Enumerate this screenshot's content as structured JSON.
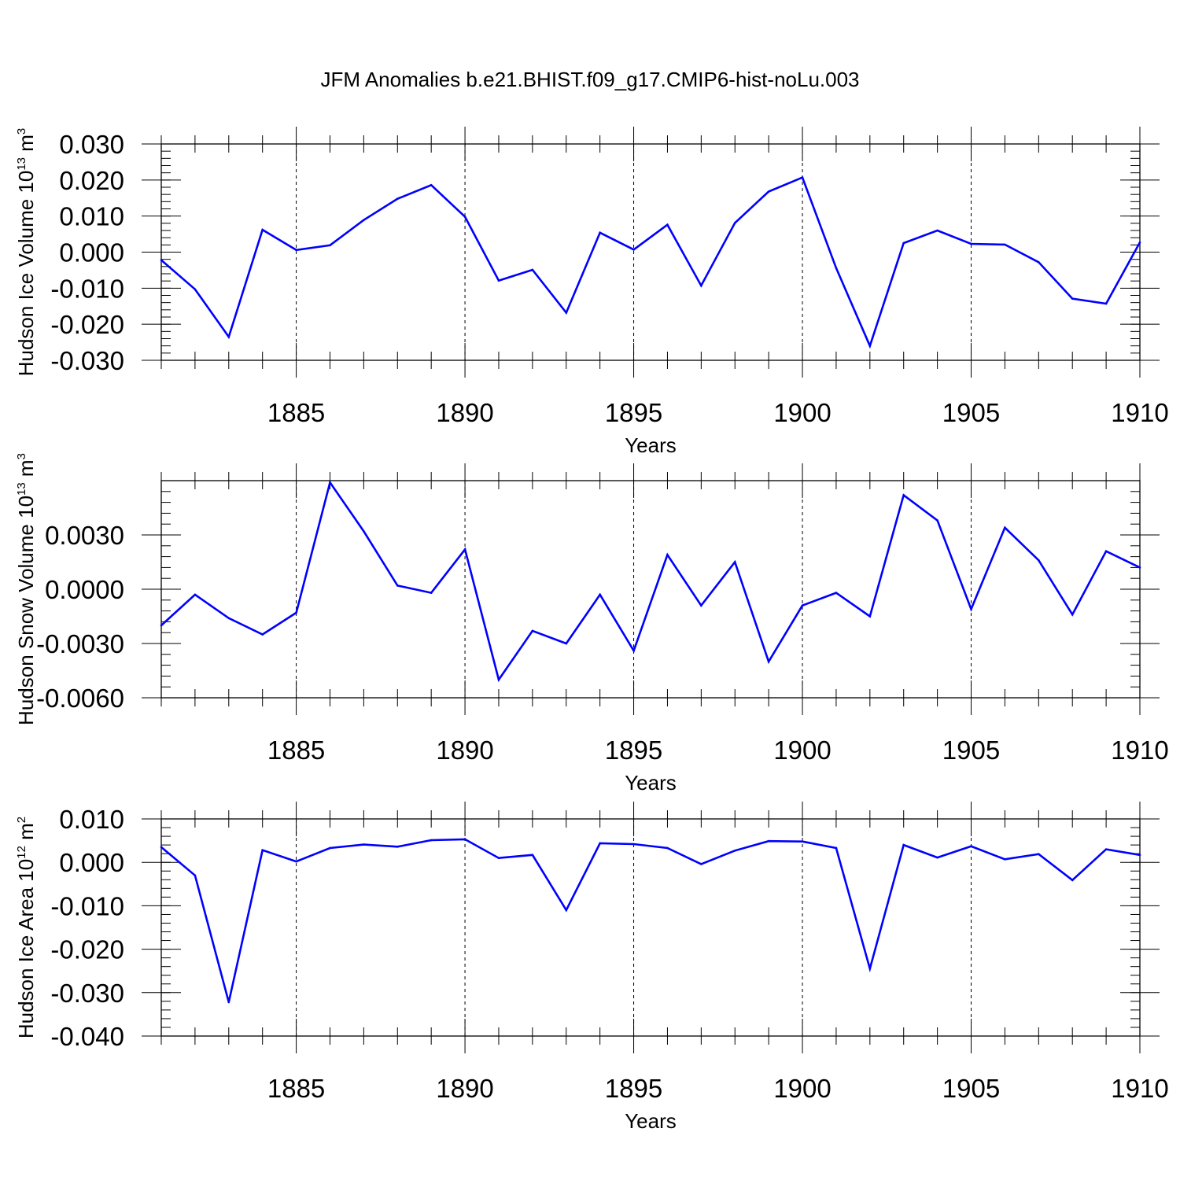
{
  "figure": {
    "title": "JFM Anomalies b.e21.BHIST.f09_g17.CMIP6-hist-noLu.003"
  },
  "chart_data": [
    {
      "type": "line",
      "panel": "top",
      "title": "",
      "xlabel": "Years",
      "ylabel": "Hudson Ice Volume 10",
      "ylabel_exponent": "13",
      "ylabel_unit": "m",
      "ylabel_unit_exponent": "3",
      "xlim": [
        1881,
        1910
      ],
      "ylim": [
        -0.03,
        0.03
      ],
      "xticks": [
        1885,
        1890,
        1895,
        1900,
        1905,
        1910
      ],
      "yticks": [
        0.03,
        0.02,
        0.01,
        0.0,
        -0.01,
        -0.02,
        -0.03
      ],
      "ytick_labels": [
        "0.030",
        "0.020",
        "0.010",
        "0.000",
        "-0.010",
        "-0.020",
        "-0.030"
      ],
      "grid": "vertical dashed at major x ticks",
      "line_color": "#0000ff",
      "x": [
        1881,
        1882,
        1883,
        1884,
        1885,
        1886,
        1887,
        1888,
        1889,
        1890,
        1891,
        1892,
        1893,
        1894,
        1895,
        1896,
        1897,
        1898,
        1899,
        1900,
        1901,
        1902,
        1903,
        1904,
        1905,
        1906,
        1907,
        1908,
        1909,
        1910
      ],
      "values": [
        -0.0022,
        -0.0103,
        -0.0235,
        0.0062,
        0.0006,
        0.0019,
        0.0089,
        0.0148,
        0.0186,
        0.0098,
        -0.0079,
        -0.0049,
        -0.0168,
        0.0054,
        0.0007,
        0.0076,
        -0.0093,
        0.0081,
        0.0168,
        0.0207,
        -0.0044,
        -0.026,
        0.0025,
        0.006,
        0.0023,
        0.0021,
        -0.0028,
        -0.0129,
        -0.0143,
        0.0027
      ]
    },
    {
      "type": "line",
      "panel": "middle",
      "title": "",
      "xlabel": "Years",
      "ylabel": "Hudson Snow Volume 10",
      "ylabel_exponent": "13",
      "ylabel_unit": "m",
      "ylabel_unit_exponent": "3",
      "xlim": [
        1881,
        1910
      ],
      "ylim": [
        -0.006,
        0.006
      ],
      "xticks": [
        1885,
        1890,
        1895,
        1900,
        1905,
        1910
      ],
      "yticks": [
        0.003,
        0.0,
        -0.003,
        -0.006
      ],
      "ytick_labels": [
        "0.0030",
        "0.0000",
        "-0.0030",
        "-0.0060"
      ],
      "grid": "vertical dashed at major x ticks",
      "line_color": "#0000ff",
      "x": [
        1881,
        1882,
        1883,
        1884,
        1885,
        1886,
        1887,
        1888,
        1889,
        1890,
        1891,
        1892,
        1893,
        1894,
        1895,
        1896,
        1897,
        1898,
        1899,
        1900,
        1901,
        1902,
        1903,
        1904,
        1905,
        1906,
        1907,
        1908,
        1909,
        1910
      ],
      "values": [
        -0.002,
        -0.0003,
        -0.0016,
        -0.0025,
        -0.0013,
        0.0059,
        0.0032,
        0.0002,
        -0.0002,
        0.0022,
        -0.005,
        -0.0023,
        -0.003,
        -0.0003,
        -0.0034,
        0.0019,
        -0.0009,
        0.0015,
        -0.004,
        -0.0009,
        -0.0002,
        -0.0015,
        0.0052,
        0.0038,
        -0.0011,
        0.0034,
        0.0016,
        -0.0014,
        0.0021,
        0.0012
      ]
    },
    {
      "type": "line",
      "panel": "bottom",
      "title": "",
      "xlabel": "Years",
      "ylabel": "Hudson Ice Area 10",
      "ylabel_exponent": "12",
      "ylabel_unit": "m",
      "ylabel_unit_exponent": "2",
      "xlim": [
        1881,
        1910
      ],
      "ylim": [
        -0.04,
        0.01
      ],
      "xticks": [
        1885,
        1890,
        1895,
        1900,
        1905,
        1910
      ],
      "yticks": [
        0.01,
        0.0,
        -0.01,
        -0.02,
        -0.03,
        -0.04
      ],
      "ytick_labels": [
        "0.010",
        "0.000",
        "-0.010",
        "-0.020",
        "-0.030",
        "-0.040"
      ],
      "grid": "vertical dashed at major x ticks",
      "line_color": "#0000ff",
      "x": [
        1881,
        1882,
        1883,
        1884,
        1885,
        1886,
        1887,
        1888,
        1889,
        1890,
        1891,
        1892,
        1893,
        1894,
        1895,
        1896,
        1897,
        1898,
        1899,
        1900,
        1901,
        1902,
        1903,
        1904,
        1905,
        1906,
        1907,
        1908,
        1909,
        1910
      ],
      "values": [
        0.0035,
        -0.003,
        -0.0322,
        0.0028,
        0.0002,
        0.0033,
        0.0041,
        0.0036,
        0.0051,
        0.0053,
        0.001,
        0.0017,
        -0.011,
        0.0044,
        0.0042,
        0.0033,
        -0.0004,
        0.0027,
        0.0049,
        0.0048,
        0.0033,
        -0.0245,
        0.004,
        0.0011,
        0.0037,
        0.0007,
        0.0019,
        -0.0041,
        0.003,
        0.0017
      ]
    }
  ]
}
